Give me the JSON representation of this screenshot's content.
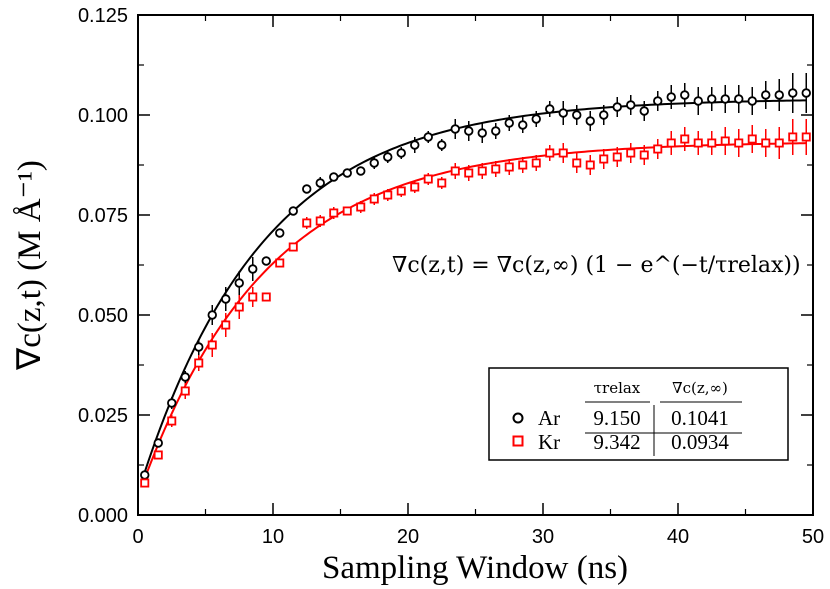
{
  "chart_data": {
    "type": "scatter",
    "xlabel": "Sampling Window (ns)",
    "ylabel": "∇c(z,t) (M Å⁻¹)",
    "xlim": [
      0,
      50
    ],
    "ylim": [
      0,
      0.125
    ],
    "x_ticks": [
      "0",
      "10",
      "20",
      "30",
      "40",
      "50"
    ],
    "y_ticks": [
      "0.000",
      "0.025",
      "0.050",
      "0.075",
      "0.100",
      "0.125"
    ],
    "x_tick_values": [
      0,
      10,
      20,
      30,
      40,
      50
    ],
    "y_tick_values": [
      0,
      0.025,
      0.05,
      0.075,
      0.1,
      0.125
    ],
    "grid": false,
    "annotation": "∇c(z,t) = ∇c(z,∞) (1 − e^(−t/τrelax))",
    "legend": {
      "position": "bottom-right",
      "header_tau": "τrelax",
      "header_grad": "∇c(z,∞)",
      "rows": [
        {
          "name": "Ar",
          "tau": "9.150",
          "grad": "0.1041"
        },
        {
          "name": "Kr",
          "tau": "9.342",
          "grad": "0.0934"
        }
      ]
    },
    "series": [
      {
        "name": "Ar",
        "color": "#000000",
        "marker": "circle",
        "fit": {
          "tau": 9.15,
          "inf": 0.1041,
          "offset": 0.0055
        },
        "x": [
          0.5,
          1.5,
          2.5,
          3.5,
          4.5,
          5.5,
          6.5,
          7.5,
          8.5,
          9.5,
          10.5,
          11.5,
          12.5,
          13.5,
          14.5,
          15.5,
          16.5,
          17.5,
          18.5,
          19.5,
          20.5,
          21.5,
          22.5,
          23.5,
          24.5,
          25.5,
          26.5,
          27.5,
          28.5,
          29.5,
          30.5,
          31.5,
          32.5,
          33.5,
          34.5,
          35.5,
          36.5,
          37.5,
          38.5,
          39.5,
          40.5,
          41.5,
          42.5,
          43.5,
          44.5,
          45.5,
          46.5,
          47.5,
          48.5,
          49.5
        ],
        "y": [
          0.01,
          0.018,
          0.028,
          0.0345,
          0.042,
          0.05,
          0.054,
          0.058,
          0.0615,
          0.0635,
          0.0705,
          0.076,
          0.0815,
          0.083,
          0.0845,
          0.0855,
          0.086,
          0.088,
          0.0895,
          0.0905,
          0.0925,
          0.0945,
          0.0925,
          0.0965,
          0.096,
          0.0955,
          0.096,
          0.098,
          0.0975,
          0.099,
          0.1015,
          0.1005,
          0.1,
          0.0985,
          0.1,
          0.102,
          0.1025,
          0.101,
          0.1035,
          0.1045,
          0.105,
          0.1035,
          0.104,
          0.104,
          0.104,
          0.1035,
          0.105,
          0.105,
          0.1055,
          0.1055
        ],
        "err": [
          0.001,
          0.001,
          0.0015,
          0.0015,
          0.002,
          0.0025,
          0.003,
          0.003,
          0.003,
          0.001,
          0.001,
          0.001,
          0.001,
          0.0015,
          0.001,
          0.001,
          0.001,
          0.0015,
          0.0015,
          0.0015,
          0.002,
          0.0015,
          0.0015,
          0.0025,
          0.0025,
          0.0025,
          0.002,
          0.002,
          0.002,
          0.002,
          0.002,
          0.003,
          0.0025,
          0.0025,
          0.0025,
          0.0025,
          0.0025,
          0.0025,
          0.0025,
          0.003,
          0.003,
          0.0035,
          0.003,
          0.0035,
          0.0035,
          0.0035,
          0.0035,
          0.004,
          0.005,
          0.005
        ]
      },
      {
        "name": "Kr",
        "color": "#ff0000",
        "marker": "square",
        "fit": {
          "tau": 9.342,
          "inf": 0.0934,
          "offset": 0.0045
        },
        "x": [
          0.5,
          1.5,
          2.5,
          3.5,
          4.5,
          5.5,
          6.5,
          7.5,
          8.5,
          9.5,
          10.5,
          11.5,
          12.5,
          13.5,
          14.5,
          15.5,
          16.5,
          17.5,
          18.5,
          19.5,
          20.5,
          21.5,
          22.5,
          23.5,
          24.5,
          25.5,
          26.5,
          27.5,
          28.5,
          29.5,
          30.5,
          31.5,
          32.5,
          33.5,
          34.5,
          35.5,
          36.5,
          37.5,
          38.5,
          39.5,
          40.5,
          41.5,
          42.5,
          43.5,
          44.5,
          45.5,
          46.5,
          47.5,
          48.5,
          49.5
        ],
        "y": [
          0.008,
          0.015,
          0.0235,
          0.031,
          0.038,
          0.0425,
          0.0475,
          0.052,
          0.0545,
          0.0545,
          0.063,
          0.067,
          0.073,
          0.0735,
          0.0755,
          0.076,
          0.077,
          0.079,
          0.08,
          0.081,
          0.082,
          0.084,
          0.083,
          0.086,
          0.0855,
          0.086,
          0.0865,
          0.087,
          0.0875,
          0.088,
          0.0905,
          0.0905,
          0.088,
          0.0875,
          0.089,
          0.0895,
          0.0905,
          0.09,
          0.0915,
          0.093,
          0.094,
          0.093,
          0.093,
          0.0935,
          0.093,
          0.094,
          0.093,
          0.093,
          0.0945,
          0.0945
        ],
        "err": [
          0.001,
          0.001,
          0.0015,
          0.002,
          0.002,
          0.003,
          0.003,
          0.003,
          0.0025,
          0.001,
          0.001,
          0.001,
          0.0015,
          0.0015,
          0.0015,
          0.001,
          0.0015,
          0.0015,
          0.0015,
          0.0015,
          0.0015,
          0.0015,
          0.0015,
          0.002,
          0.002,
          0.002,
          0.002,
          0.002,
          0.002,
          0.002,
          0.002,
          0.0025,
          0.0025,
          0.0025,
          0.0025,
          0.0025,
          0.0025,
          0.0025,
          0.0025,
          0.003,
          0.003,
          0.003,
          0.003,
          0.0035,
          0.0035,
          0.0035,
          0.0035,
          0.004,
          0.0045,
          0.0045
        ]
      }
    ]
  }
}
